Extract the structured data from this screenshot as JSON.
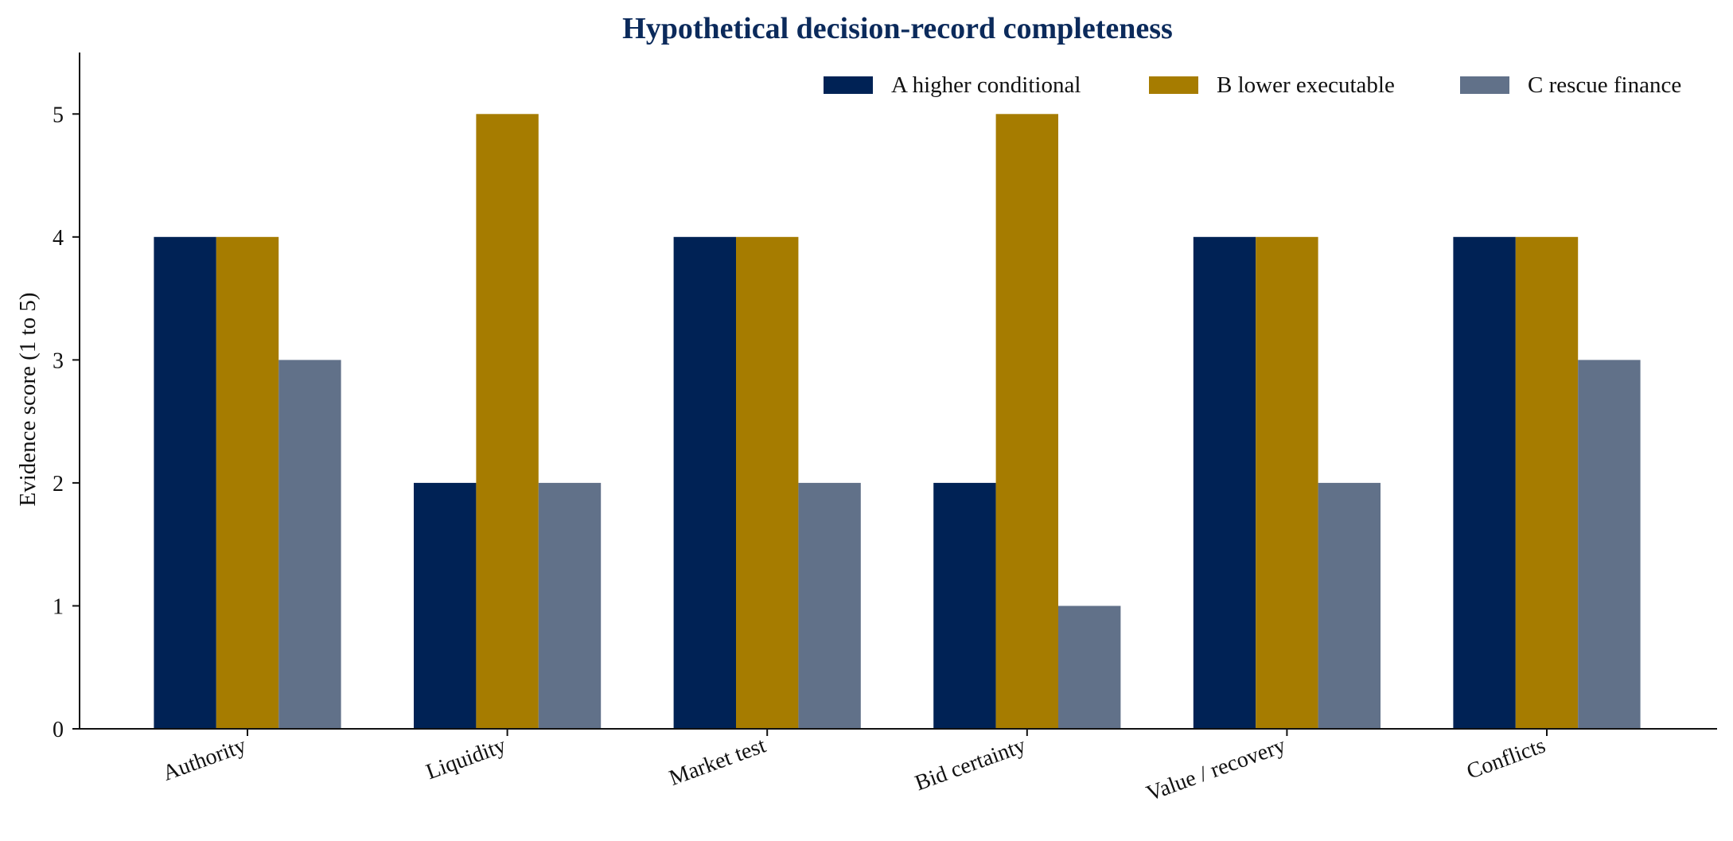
{
  "chart_data": {
    "type": "bar",
    "title": "Hypothetical decision-record completeness",
    "xlabel": "",
    "ylabel": "Evidence score (1 to 5)",
    "ylim": [
      0,
      5.5
    ],
    "yticks": [
      0,
      1,
      2,
      3,
      4,
      5
    ],
    "grid": false,
    "legend_position": "top-right",
    "categories": [
      "Authority",
      "Liquidity",
      "Market test",
      "Bid certainty",
      "Value / recovery",
      "Conflicts"
    ],
    "series": [
      {
        "name": "A higher conditional",
        "color": "#002255",
        "values": [
          4,
          2,
          4,
          2,
          4,
          4
        ]
      },
      {
        "name": "B lower executable",
        "color": "#A67C00",
        "values": [
          4,
          5,
          4,
          5,
          4,
          4
        ]
      },
      {
        "name": "C rescue finance",
        "color": "#617189",
        "values": [
          3,
          2,
          2,
          1,
          2,
          3
        ]
      }
    ],
    "colors": {
      "title": "#0B2A5B",
      "axis": "#111111"
    }
  }
}
